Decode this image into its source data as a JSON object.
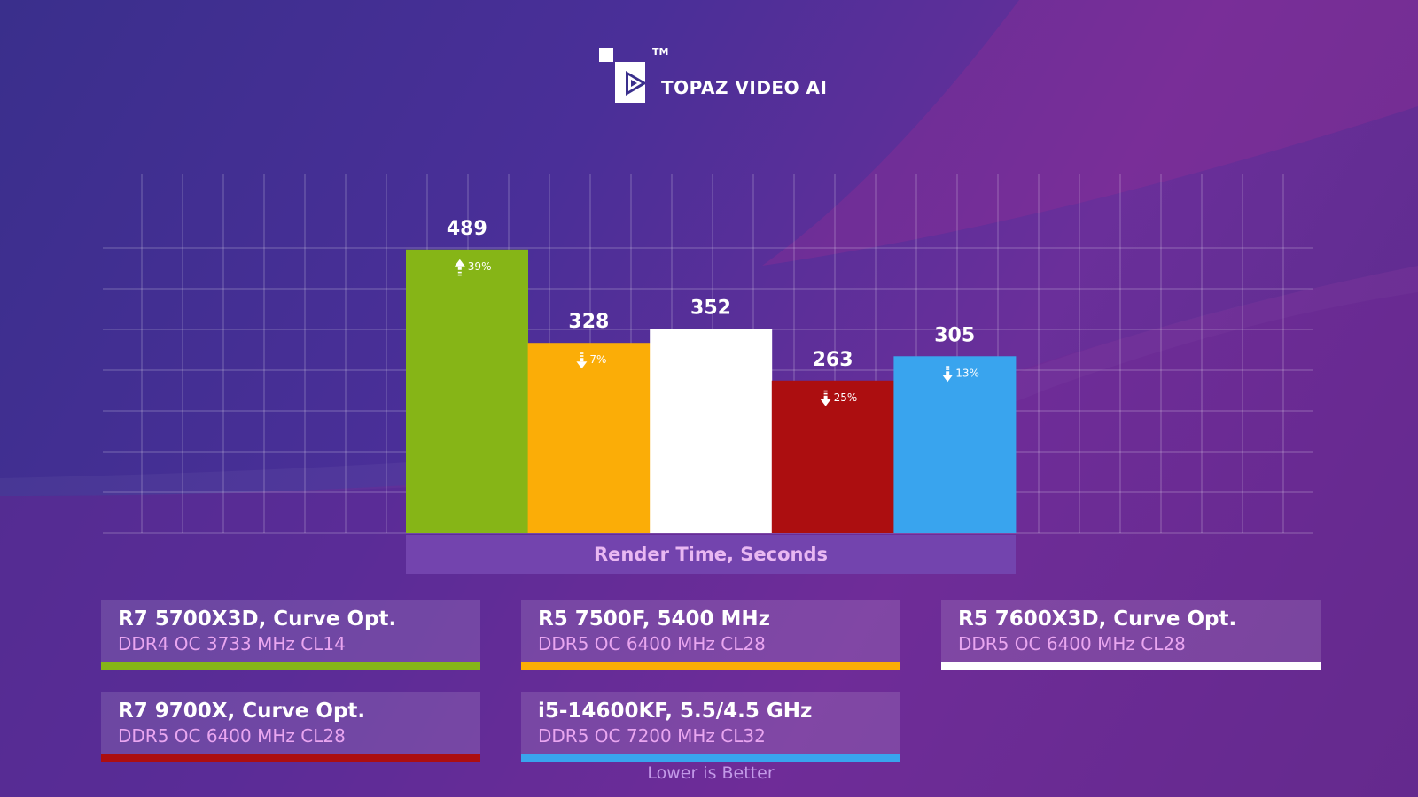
{
  "brand": {
    "title": "TOPAZ VIDEO AI",
    "tm": "TM",
    "logo_icon": "play-icon"
  },
  "chart_data": {
    "type": "bar",
    "categories": [
      "R7 5700X3D, Curve Opt.",
      "R5 7500F, 5400 MHz",
      "R5 7600X3D, Curve Opt.",
      "R7 9700X, Curve Opt.",
      "i5-14600KF, 5.5/4.5 GHz"
    ],
    "values": [
      489,
      328,
      352,
      263,
      305
    ],
    "colors": [
      "#86b517",
      "#fbad07",
      "#ffffff",
      "#ac0e10",
      "#39a4ee"
    ],
    "deltas": [
      {
        "text": "39%",
        "direction": "up"
      },
      {
        "text": "7%",
        "direction": "down"
      },
      null,
      {
        "text": "25%",
        "direction": "down"
      },
      {
        "text": "13%",
        "direction": "down"
      }
    ],
    "xlabel": "Render Time, Seconds",
    "ylim": [
      0,
      620
    ],
    "grid": true,
    "note": "Lower is Better"
  },
  "legend": [
    {
      "title": "R7 5700X3D, Curve Opt.",
      "sub": "DDR4 OC 3733 MHz CL14",
      "color": "#86b517"
    },
    {
      "title": "R5 7500F, 5400 MHz",
      "sub": "DDR5 OC 6400 MHz CL28",
      "color": "#fbad07"
    },
    {
      "title": "R5 7600X3D, Curve Opt.",
      "sub": "DDR5 OC 6400 MHz CL28",
      "color": "#ffffff"
    },
    {
      "title": "R7 9700X, Curve Opt.",
      "sub": "DDR5 OC 6400 MHz CL28",
      "color": "#ac0e10"
    },
    {
      "title": "i5-14600KF, 5.5/4.5 GHz",
      "sub": "DDR5 OC 7200 MHz CL32",
      "color": "#39a4ee"
    }
  ]
}
